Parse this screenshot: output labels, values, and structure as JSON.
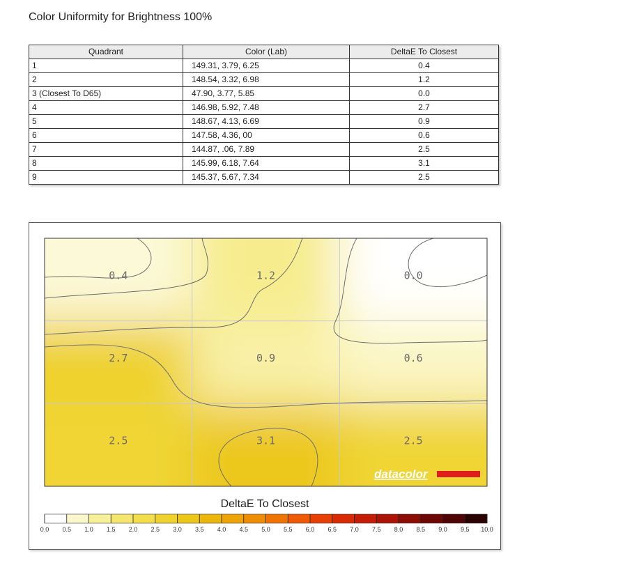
{
  "title": "Color Uniformity for Brightness 100%",
  "table": {
    "headers": [
      "Quadrant",
      "Color (Lab)",
      "DeltaE To Closest"
    ],
    "rows": [
      {
        "quadrant": "1",
        "lab": "149.31,   3.79,   6.25",
        "deltae": "0.4"
      },
      {
        "quadrant": "2",
        "lab": "148.54,   3.32,   6.98",
        "deltae": "1.2"
      },
      {
        "quadrant": "3 (Closest To D65)",
        "lab": "47.90,   3.77,   5.85",
        "deltae": "0.0"
      },
      {
        "quadrant": "4",
        "lab": "146.98,   5.92,   7.48",
        "deltae": "2.7"
      },
      {
        "quadrant": "5",
        "lab": "148.67,   4.13,   6.69",
        "deltae": "0.9"
      },
      {
        "quadrant": "6",
        "lab": "147.58,   4.36,     00",
        "deltae": "0.6"
      },
      {
        "quadrant": "7",
        "lab": "144.87,    .06,   7.89",
        "deltae": "2.5"
      },
      {
        "quadrant": "8",
        "lab": "145.99,   6.18,   7.64",
        "deltae": "3.1"
      },
      {
        "quadrant": "9",
        "lab": "145.37,   5.67,   7.34",
        "deltae": "2.5"
      }
    ]
  },
  "chart_data": {
    "type": "heatmap",
    "grid": {
      "rows": 3,
      "cols": 3
    },
    "values": [
      [
        0.4,
        1.2,
        0.0
      ],
      [
        2.7,
        0.9,
        0.6
      ],
      [
        2.5,
        3.1,
        2.5
      ]
    ],
    "cell_labels": [
      [
        "0.4",
        "1.2",
        "0.0"
      ],
      [
        "2.7",
        "0.9",
        "0.6"
      ],
      [
        "2.5",
        "3.1",
        "2.5"
      ]
    ],
    "contours": true,
    "watermark": "datacolor",
    "colorbar": {
      "title": "DeltaE To Closest",
      "range": [
        0.0,
        10.0
      ],
      "ticks": [
        "0.0",
        "0.5",
        "1.0",
        "1.5",
        "2.0",
        "2.5",
        "3.0",
        "3.5",
        "4.0",
        "4.5",
        "5.0",
        "5.5",
        "6.0",
        "6.5",
        "7.0",
        "7.5",
        "8.0",
        "8.5",
        "9.0",
        "9.5",
        "10.0"
      ],
      "colors": [
        "#ffffff",
        "#fbf7cc",
        "#f8ef99",
        "#f5e66e",
        "#f2dd4a",
        "#efd22d",
        "#ecc718",
        "#ecb60b",
        "#eea306",
        "#ef8e05",
        "#f07404",
        "#ee5b04",
        "#e64004",
        "#d82a04",
        "#c41d05",
        "#aa1406",
        "#8c0d06",
        "#6e0806",
        "#4f0505",
        "#2a0202"
      ],
      "grid_visible": true
    },
    "colors": {
      "brand_bar": "#e11d1d",
      "watermark_text": "#ffffff",
      "grid_line": "#c9c9c9",
      "contour_line": "#6e6e6e"
    }
  }
}
